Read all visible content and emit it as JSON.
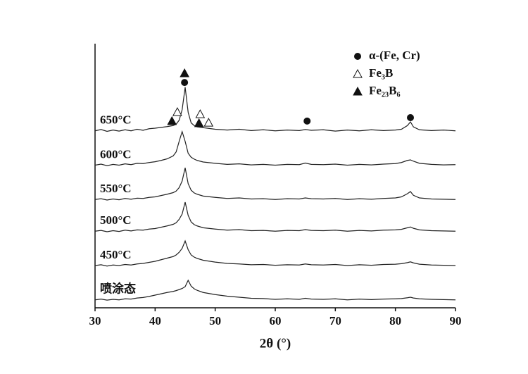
{
  "chart_data": {
    "type": "line",
    "xlabel": "2θ (°)",
    "xlim": [
      30,
      90
    ],
    "xticks": [
      30,
      40,
      50,
      60,
      70,
      80,
      90
    ],
    "ylim": [
      0,
      100
    ],
    "x": [
      30,
      31,
      32,
      33,
      34,
      35,
      36,
      37,
      38,
      39,
      40,
      41,
      42,
      43,
      43.5,
      44,
      44.5,
      45,
      45.5,
      46,
      46.5,
      47,
      48,
      50,
      52,
      54,
      56,
      58,
      60,
      62,
      64,
      65,
      66,
      68,
      70,
      72,
      74,
      76,
      78,
      80,
      81,
      82,
      82.5,
      83,
      84,
      86,
      88,
      90
    ],
    "series": [
      {
        "name": "650°C",
        "color": "#222222",
        "values": [
          67,
          67.5,
          66.8,
          67.3,
          66.9,
          67.4,
          67,
          67.6,
          67.2,
          67.8,
          68,
          68.3,
          68.6,
          69,
          69.5,
          71,
          75,
          83.5,
          74,
          70,
          69,
          68.5,
          68.2,
          67.6,
          67.3,
          67.6,
          67.1,
          67.4,
          67,
          67.3,
          67.1,
          67.5,
          67.2,
          67.4,
          66.9,
          67.3,
          67,
          67.4,
          67.1,
          67.3,
          67.6,
          69,
          70.4,
          68.5,
          67.4,
          67.1,
          67.3,
          67
        ]
      },
      {
        "name": "600°C",
        "color": "#222222",
        "values": [
          54,
          54.4,
          53.8,
          54.3,
          54,
          54.5,
          54.2,
          54.7,
          54.6,
          55,
          55.3,
          55.8,
          56.4,
          57.5,
          59,
          63,
          66.7,
          63,
          58.5,
          57,
          56.3,
          55.8,
          55.2,
          54.7,
          54.3,
          54.5,
          54.1,
          54.3,
          54,
          54.3,
          54.2,
          54.8,
          54.3,
          54.2,
          54.4,
          54,
          54.3,
          54.1,
          54.4,
          54.6,
          55,
          55.8,
          56,
          55.5,
          54.7,
          54.3,
          54.1,
          54.2
        ]
      },
      {
        "name": "550°C",
        "color": "#222222",
        "values": [
          41,
          41.3,
          40.8,
          41.2,
          40.9,
          41.4,
          41.1,
          41.5,
          41.4,
          41.8,
          42,
          42.5,
          43,
          43.6,
          44.2,
          45.5,
          48,
          53,
          47,
          44.5,
          43.5,
          43,
          42.3,
          41.8,
          41.4,
          41.6,
          41.2,
          41.3,
          41,
          41.3,
          41.2,
          41.6,
          41.3,
          41.2,
          41.4,
          41,
          41.3,
          41.1,
          41.4,
          41.6,
          42,
          43.2,
          44,
          42.6,
          41.6,
          41.2,
          41.1,
          41
        ]
      },
      {
        "name": "500°C",
        "color": "#222222",
        "values": [
          29,
          29.3,
          28.8,
          29.2,
          28.9,
          29.4,
          29.1,
          29.5,
          29.4,
          29.8,
          30,
          30.5,
          31,
          31.6,
          32.2,
          33.5,
          35.5,
          40,
          35,
          32.5,
          31.5,
          31,
          30.3,
          29.8,
          29.4,
          29.6,
          29.2,
          29.3,
          29,
          29.3,
          29.2,
          29.6,
          29.3,
          29.2,
          29.4,
          29,
          29.3,
          29.1,
          29.4,
          29.5,
          29.7,
          30.3,
          30.6,
          30.1,
          29.5,
          29.2,
          29.1,
          29
        ]
      },
      {
        "name": "450°C",
        "color": "#222222",
        "values": [
          16,
          16.3,
          15.8,
          16.2,
          16,
          16.4,
          16.2,
          16.6,
          16.8,
          17.2,
          17.6,
          18.2,
          18.8,
          19.4,
          20,
          21,
          22.5,
          25.3,
          22,
          20,
          19.2,
          18.7,
          18,
          17.3,
          16.8,
          16.6,
          16.3,
          16.4,
          16.1,
          16.3,
          16.2,
          16.6,
          16.3,
          16.2,
          16.4,
          16,
          16.3,
          16.1,
          16.4,
          16.5,
          16.7,
          17.1,
          17.4,
          17,
          16.5,
          16.2,
          16.1,
          16
        ]
      },
      {
        "name": "喷涂态",
        "color": "#222222",
        "values": [
          3,
          3.3,
          2.9,
          3.2,
          3,
          3.4,
          3.3,
          3.7,
          3.9,
          4.3,
          4.8,
          5.3,
          5.8,
          6.2,
          6.5,
          6.9,
          7.3,
          8,
          10.4,
          8.2,
          7.2,
          6.6,
          5.8,
          5,
          4.4,
          4,
          3.6,
          3.5,
          3.2,
          3.4,
          3.2,
          3.6,
          3.3,
          3.2,
          3.4,
          3,
          3.3,
          3.1,
          3.3,
          3.4,
          3.5,
          3.8,
          4,
          3.7,
          3.4,
          3.2,
          3.1,
          3
        ]
      }
    ],
    "phases": [
      {
        "name": "α-(Fe, Cr)",
        "symbol": "circle",
        "x": [
          44.9,
          65.3,
          82.5
        ],
        "y": [
          85.3,
          70.7,
          72
        ]
      },
      {
        "name": "Fe₃B",
        "symbol": "open-triangle",
        "x": [
          43.7,
          47.5,
          48.9
        ],
        "y": [
          74.1,
          73.3,
          70.1
        ]
      },
      {
        "name": "Fe₂₃B₆",
        "symbol": "triangle",
        "x": [
          44.9,
          42.8,
          47.3
        ],
        "y": [
          88.8,
          70.7,
          69.9
        ]
      }
    ]
  }
}
